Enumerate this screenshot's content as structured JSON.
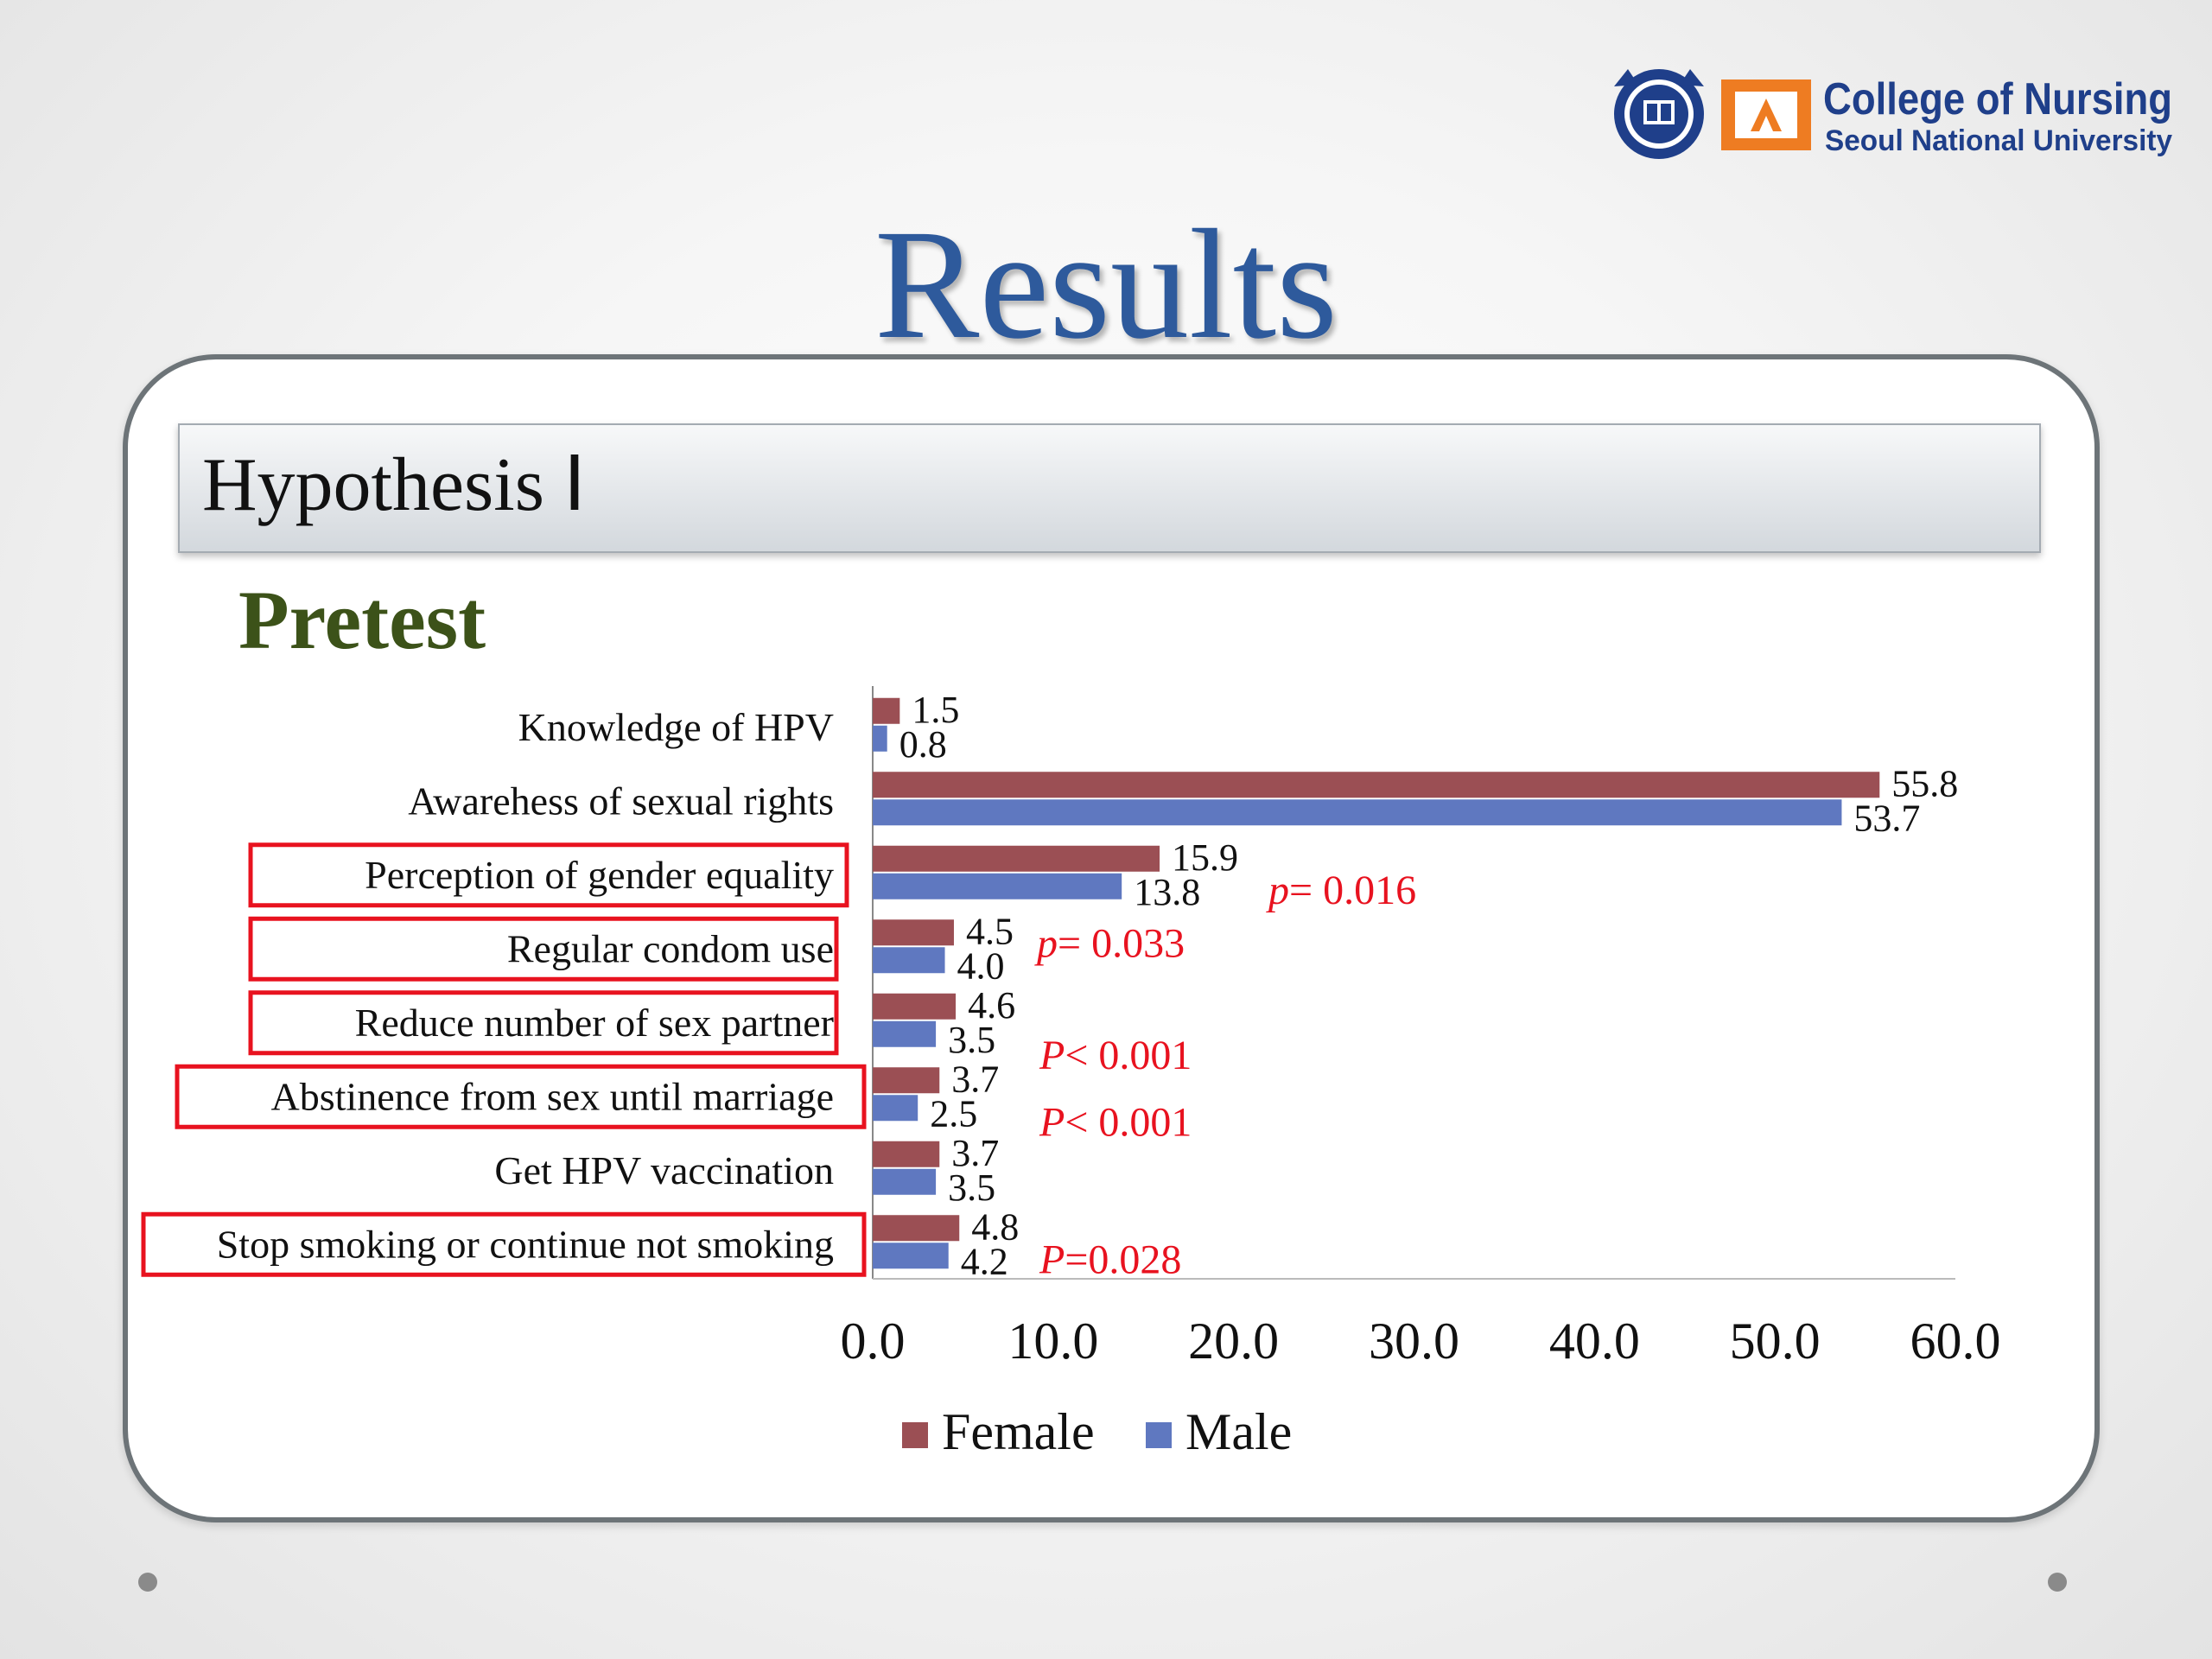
{
  "logo": {
    "line1": "College of Nursing",
    "line2": "Seoul National University",
    "emblem": "university-seal-icon",
    "mark": "nursing-mark-icon",
    "brand_blue": "#1f3f8a",
    "brand_orange": "#ee7c22"
  },
  "slide": {
    "title": "Results",
    "heading": "Hypothesis  Ⅰ",
    "section": "Pretest"
  },
  "colors": {
    "title": "#2e5a9c",
    "female": "#9b4f54",
    "male": "#5f78c0",
    "annotation": "#e8121f",
    "highlight_box": "#e8121f"
  },
  "chart_data": {
    "type": "bar",
    "orientation": "horizontal",
    "categories": [
      "Knowledge of HPV",
      "Awarehess of sexual rights",
      "Perception of gender equality",
      "Regular condom use",
      "Reduce number of sex partner",
      "Abstinence from sex until marriage",
      "Get HPV vaccination",
      "Stop smoking or continue not smoking"
    ],
    "series": [
      {
        "name": "Female",
        "values": [
          1.5,
          55.8,
          15.9,
          4.5,
          4.6,
          3.7,
          3.7,
          4.8
        ],
        "labels": [
          "1.5",
          "55.8",
          "15.9",
          "4.5",
          "4.6",
          "3.7",
          "3.7",
          "4.8"
        ]
      },
      {
        "name": "Male",
        "values": [
          0.8,
          53.7,
          13.8,
          4.0,
          3.5,
          2.5,
          3.5,
          4.2
        ],
        "labels": [
          "0.8",
          "53.7",
          "13.8",
          "4.0",
          "3.5",
          "2.5",
          "3.5",
          "4.2"
        ]
      }
    ],
    "xlim": [
      0,
      60
    ],
    "xticks": [
      "0.0",
      "10.0",
      "20.0",
      "30.0",
      "40.0",
      "50.0",
      "60.0"
    ],
    "legend": {
      "placement": "bottom",
      "entries": [
        "Female",
        "Male"
      ]
    },
    "grid": false,
    "annotations": [
      {
        "category": "Perception of gender equality",
        "prefix": "p",
        "rest": "= 0.016"
      },
      {
        "category": "Regular condom use",
        "prefix": "p",
        "rest": "= 0.033"
      },
      {
        "category": "Reduce number of sex partner",
        "prefix": "P",
        "rest": "< 0.001"
      },
      {
        "category": "Abstinence from sex until marriage",
        "prefix": "P",
        "rest": "< 0.001"
      },
      {
        "category": "Stop smoking or continue not smoking",
        "prefix": "P",
        "rest": "=0.028"
      }
    ],
    "highlighted_categories": [
      "Perception of gender equality",
      "Regular condom use",
      "Reduce number of sex partner",
      "Abstinence from sex until marriage",
      "Stop smoking or continue not smoking"
    ]
  }
}
